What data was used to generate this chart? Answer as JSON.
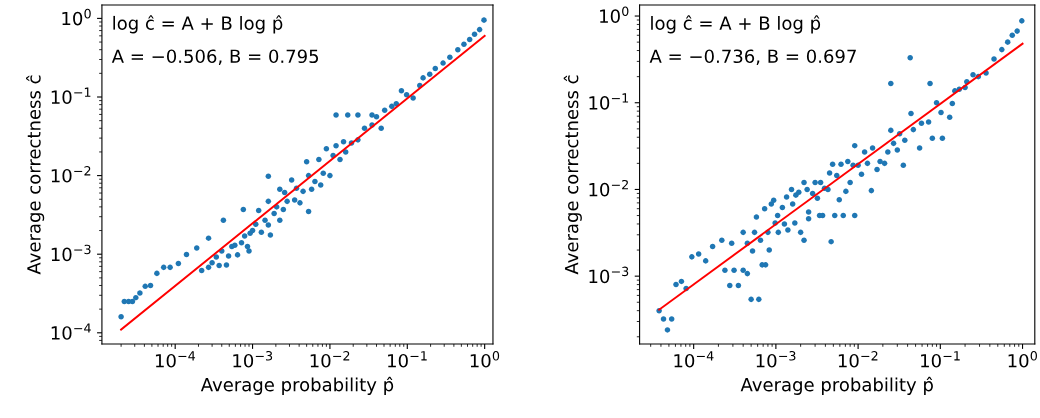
{
  "chart_data": [
    {
      "type": "scatter",
      "xlabel": "Average probability p̂",
      "ylabel": "Average correctness ĉ",
      "log": "xy",
      "grid": false,
      "annotations": [
        "log ĉ = A + B log p̂",
        "A = −0.506, B = 0.795"
      ],
      "xlim": [
        1.13e-05,
        1.28
      ],
      "ylim": [
        7.2e-05,
        1.48
      ],
      "xticks": [
        {
          "value": 0.0001,
          "label": "10$^{−4}$"
        },
        {
          "value": 0.001,
          "label": "10$^{−3}$"
        },
        {
          "value": 0.01,
          "label": "10$^{−2}$"
        },
        {
          "value": 0.1,
          "label": "10$^{−1}$"
        },
        {
          "value": 1,
          "label": "10$^{0}$"
        }
      ],
      "yticks": [
        {
          "value": 0.0001,
          "label": "10$^{−4}$"
        },
        {
          "value": 0.001,
          "label": "10$^{−3}$"
        },
        {
          "value": 0.01,
          "label": "10$^{−2}$"
        },
        {
          "value": 0.1,
          "label": "10$^{−1}$"
        },
        {
          "value": 1,
          "label": "10$^{0}$"
        }
      ],
      "series": [
        {
          "marker": "circle",
          "color": "#1f77b4",
          "x": [
            2e-05,
            2.2e-05,
            2.5e-05,
            2.8e-05,
            3.1e-05,
            3.5e-05,
            4.1e-05,
            4.8e-05,
            5.8e-05,
            7.1e-05,
            8.6e-05,
            0.00011,
            0.00014,
            0.00019,
            0.00022,
            0.00027,
            0.00027,
            0.0003,
            0.00034,
            0.00037,
            0.0004,
            0.00042,
            0.00046,
            0.00049,
            0.00054,
            0.00059,
            0.00064,
            0.00072,
            0.00076,
            0.00079,
            0.00086,
            0.0009,
            0.00093,
            0.001,
            0.0011,
            0.0012,
            0.0013,
            0.00145,
            0.0016,
            0.0016,
            0.0017,
            0.0016,
            0.0019,
            0.00205,
            0.00225,
            0.00225,
            0.0025,
            0.0026,
            0.0028,
            0.0032,
            0.0035,
            0.0037,
            0.0041,
            0.0045,
            0.005,
            0.0053,
            0.0053,
            0.0058,
            0.0064,
            0.0072,
            0.0076,
            0.0082,
            0.009,
            0.01,
            0.011,
            0.012,
            0.0135,
            0.015,
            0.016,
            0.012,
            0.017,
            0.023,
            0.019,
            0.023,
            0.028,
            0.035,
            0.035,
            0.04,
            0.046,
            0.051,
            0.063,
            0.072,
            0.084,
            0.098,
            0.119,
            0.145,
            0.16,
            0.195,
            0.23,
            0.29,
            0.355,
            0.45,
            0.54,
            0.64,
            0.74,
            0.86,
            0.98
          ],
          "values": [
            0.00016,
            0.00025,
            0.00025,
            0.00025,
            0.00028,
            0.00032,
            0.00039,
            0.0004,
            0.00057,
            0.00068,
            0.00068,
            0.00076,
            0.00099,
            0.0012,
            0.00062,
            0.00068,
            0.0016,
            0.00078,
            0.00092,
            0.00072,
            0.0011,
            0.0027,
            0.00073,
            0.00095,
            0.00125,
            0.0013,
            0.00098,
            0.0014,
            0.0037,
            0.0017,
            0.00125,
            0.0011,
            0.00185,
            0.002,
            0.0024,
            0.0036,
            0.0019,
            0.0027,
            0.00235,
            0.0098,
            0.00175,
            0.0047,
            0.0033,
            0.004,
            0.0027,
            0.0067,
            0.0037,
            0.0061,
            0.0047,
            0.0088,
            0.0049,
            0.0069,
            0.0045,
            0.0063,
            0.015,
            0.0035,
            0.01,
            0.0067,
            0.0084,
            0.016,
            0.0076,
            0.0107,
            0.022,
            0.01,
            0.018,
            0.024,
            0.016,
            0.027,
            0.02,
            0.059,
            0.059,
            0.059,
            0.026,
            0.0285,
            0.04,
            0.044,
            0.059,
            0.056,
            0.04,
            0.068,
            0.076,
            0.082,
            0.12,
            0.107,
            0.097,
            0.14,
            0.175,
            0.195,
            0.23,
            0.27,
            0.32,
            0.4,
            0.47,
            0.54,
            0.63,
            0.72,
            0.95
          ]
        },
        {
          "type": "line",
          "color": "#ff0000",
          "x": [
            2e-05,
            1.0
          ],
          "values": [
            0.00011,
            0.6
          ]
        }
      ]
    },
    {
      "type": "scatter",
      "xlabel": "Average probability p̂",
      "ylabel": "Average correctness ĉ",
      "log": "xy",
      "grid": false,
      "annotations": [
        "log ĉ = A + B log p̂",
        "A = −0.736, B = 0.697"
      ],
      "xlim": [
        2.2e-05,
        1.41
      ],
      "ylim": [
        0.000165,
        1.34
      ],
      "xticks": [
        {
          "value": 0.0001,
          "label": "10$^{−4}$"
        },
        {
          "value": 0.001,
          "label": "10$^{−3}$"
        },
        {
          "value": 0.01,
          "label": "10$^{−2}$"
        },
        {
          "value": 0.1,
          "label": "10$^{−1}$"
        },
        {
          "value": 1,
          "label": "10$^{0}$"
        }
      ],
      "yticks": [
        {
          "value": 0.001,
          "label": "10$^{−3}$"
        },
        {
          "value": 0.01,
          "label": "10$^{−2}$"
        },
        {
          "value": 0.1,
          "label": "10$^{−1}$"
        },
        {
          "value": 1,
          "label": "10$^{0}$"
        }
      ],
      "series": [
        {
          "marker": "circle",
          "color": "#1f77b4",
          "x": [
            3.8e-05,
            4.3e-05,
            4.8e-05,
            5.4e-05,
            6.1e-05,
            7.1e-05,
            8.1e-05,
            9.5e-05,
            0.000115,
            0.00014,
            0.00017,
            0.00022,
            0.00024,
            0.000275,
            0.00029,
            0.00031,
            0.00035,
            0.0004,
            0.0004,
            0.00045,
            0.00045,
            0.0005,
            0.00052,
            0.00055,
            0.00058,
            0.00062,
            0.00065,
            0.00068,
            0.00073,
            0.00075,
            0.0008,
            0.00083,
            0.00088,
            0.00094,
            0.00098,
            0.00105,
            0.00107,
            0.0012,
            0.00127,
            0.00135,
            0.0014,
            0.00155,
            0.0016,
            0.0017,
            0.00175,
            0.0019,
            0.002,
            0.0022,
            0.0022,
            0.0024,
            0.0025,
            0.0025,
            0.0028,
            0.003,
            0.0032,
            0.0034,
            0.0035,
            0.0037,
            0.0039,
            0.0043,
            0.0045,
            0.0047,
            0.0049,
            0.0052,
            0.0055,
            0.0059,
            0.0062,
            0.0066,
            0.0071,
            0.0075,
            0.008,
            0.0087,
            0.0091,
            0.0091,
            0.01,
            0.011,
            0.012,
            0.013,
            0.0145,
            0.015,
            0.017,
            0.0185,
            0.021,
            0.023,
            0.025,
            0.025,
            0.027,
            0.03,
            0.032,
            0.0355,
            0.037,
            0.043,
            0.044,
            0.047,
            0.056,
            0.059,
            0.072,
            0.075,
            0.08,
            0.09,
            0.102,
            0.106,
            0.13,
            0.14,
            0.15,
            0.17,
            0.2,
            0.21,
            0.25,
            0.29,
            0.36,
            0.45,
            0.56,
            0.66,
            0.75,
            0.86,
            0.98
          ],
          "values": [
            0.0004,
            0.00032,
            0.00024,
            0.00032,
            0.0008,
            0.00087,
            0.00072,
            0.00167,
            0.0018,
            0.0015,
            0.0022,
            0.0026,
            0.00117,
            0.00078,
            0.0024,
            0.00117,
            0.00078,
            0.00117,
            0.0032,
            0.00107,
            0.0024,
            0.00054,
            0.00195,
            0.0032,
            0.0048,
            0.00054,
            0.0026,
            0.00135,
            0.006,
            0.00135,
            0.0032,
            0.002,
            0.0068,
            0.0075,
            0.0041,
            0.005,
            0.0032,
            0.0062,
            0.004,
            0.0082,
            0.0034,
            0.01,
            0.0068,
            0.0041,
            0.0086,
            0.0093,
            0.0032,
            0.0026,
            0.012,
            0.01,
            0.0055,
            0.0046,
            0.009,
            0.012,
            0.0079,
            0.005,
            0.012,
            0.005,
            0.0103,
            0.01,
            0.0155,
            0.0025,
            0.0195,
            0.005,
            0.0145,
            0.0076,
            0.0195,
            0.005,
            0.0095,
            0.021,
            0.012,
            0.019,
            0.005,
            0.032,
            0.019,
            0.015,
            0.027,
            0.02,
            0.0097,
            0.03,
            0.017,
            0.021,
            0.02,
            0.027,
            0.167,
            0.048,
            0.034,
            0.0285,
            0.044,
            0.019,
            0.037,
            0.33,
            0.075,
            0.049,
            0.03,
            0.058,
            0.06,
            0.167,
            0.039,
            0.1,
            0.077,
            0.039,
            0.068,
            0.098,
            0.137,
            0.143,
            0.15,
            0.175,
            0.21,
            0.2,
            0.22,
            0.32,
            0.41,
            0.5,
            0.6,
            0.67,
            0.88
          ]
        },
        {
          "type": "line",
          "color": "#ff0000",
          "x": [
            3.8e-05,
            1.0
          ],
          "values": [
            0.00041,
            0.48
          ]
        }
      ]
    }
  ]
}
